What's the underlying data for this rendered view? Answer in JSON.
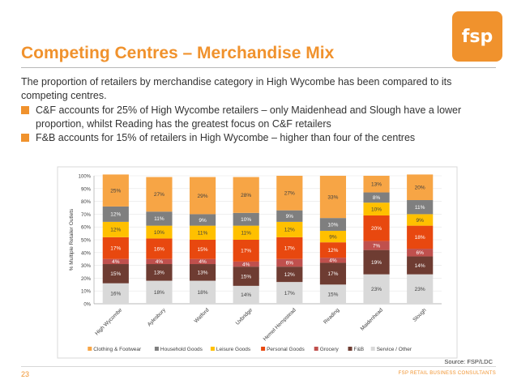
{
  "slide": {
    "title": "Competing Centres – Merchandise Mix",
    "logo_text": "fsp",
    "intro": "The proportion of retailers by merchandise category in High Wycombe has been compared to its competing centres.",
    "bullets": [
      "C&F accounts for 25% of High Wycombe retailers – only Maidenhead and Slough have a lower proportion, whilst Reading has the greatest focus on C&F retailers",
      "F&B accounts for 15% of retailers in High Wycombe – higher than four of the centres"
    ],
    "source": "Source: FSP/LDC",
    "page_number": "23",
    "footer": "FSP RETAIL BUSINESS CONSULTANTS",
    "accent_color": "#F0922D"
  },
  "chart_data": {
    "type": "bar",
    "stacked": true,
    "ylabel": "% Multiple Retailer Outlets",
    "ylim": [
      0,
      100
    ],
    "yticks": [
      "0%",
      "10%",
      "20%",
      "30%",
      "40%",
      "50%",
      "60%",
      "70%",
      "80%",
      "90%",
      "100%"
    ],
    "legend_position": "bottom",
    "categories": [
      "High Wycombe",
      "Aylesbury",
      "Watford",
      "Uxbridge",
      "Hemel Hempstead",
      "Reading",
      "Maidenhead",
      "Slough"
    ],
    "series": [
      {
        "name": "Service / Other",
        "color": "#D9D9D9",
        "label_color": "#404040",
        "values": [
          16,
          18,
          18,
          14,
          17,
          15,
          23,
          23
        ],
        "labels": [
          "16%",
          "18%",
          "18%",
          "14%",
          "17%",
          "15%",
          "23%",
          "23%"
        ]
      },
      {
        "name": "F&B",
        "color": "#6E3C32",
        "label_color": "#ffffff",
        "values": [
          15,
          13,
          13,
          15,
          12,
          17,
          19,
          14
        ],
        "labels": [
          "15%",
          "13%",
          "13%",
          "15%",
          "12%",
          "17%",
          "19%",
          "14%"
        ]
      },
      {
        "name": "Grocery",
        "color": "#C0504D",
        "label_color": "#ffffff",
        "values": [
          4,
          4,
          4,
          4,
          6,
          4,
          7,
          6
        ],
        "labels": [
          "4%",
          "4%",
          "4%",
          "4%",
          "6%",
          "4%",
          "7%",
          "6%"
        ]
      },
      {
        "name": "Personal Goods",
        "color": "#E8480F",
        "label_color": "#ffffff",
        "values": [
          17,
          16,
          15,
          17,
          17,
          12,
          20,
          18
        ],
        "labels": [
          "17%",
          "16%",
          "15%",
          "17%",
          "17%",
          "12%",
          "20%",
          "18%"
        ]
      },
      {
        "name": "Leisure Goods",
        "color": "#FFC000",
        "label_color": "#404040",
        "values": [
          12,
          10,
          11,
          11,
          12,
          9,
          10,
          9
        ],
        "labels": [
          "12%",
          "10%",
          "11%",
          "11%",
          "12%",
          "9%",
          "10%",
          "9%"
        ]
      },
      {
        "name": "Household Goods",
        "color": "#7F7F7F",
        "label_color": "#ffffff",
        "values": [
          12,
          11,
          9,
          10,
          9,
          10,
          8,
          11
        ],
        "labels": [
          "12%",
          "11%",
          "9%",
          "10%",
          "9%",
          "10%",
          "8%",
          "11%"
        ]
      },
      {
        "name": "Clothing & Footwear",
        "color": "#F7A545",
        "label_color": "#404040",
        "values": [
          25,
          27,
          29,
          28,
          27,
          33,
          13,
          20
        ],
        "labels": [
          "25%",
          "27%",
          "29%",
          "28%",
          "27%",
          "33%",
          "13%",
          "20%"
        ]
      }
    ],
    "legend_order": [
      "Clothing & Footwear",
      "Household Goods",
      "Leisure Goods",
      "Personal Goods",
      "Grocery",
      "F&B",
      "Service / Other"
    ]
  }
}
